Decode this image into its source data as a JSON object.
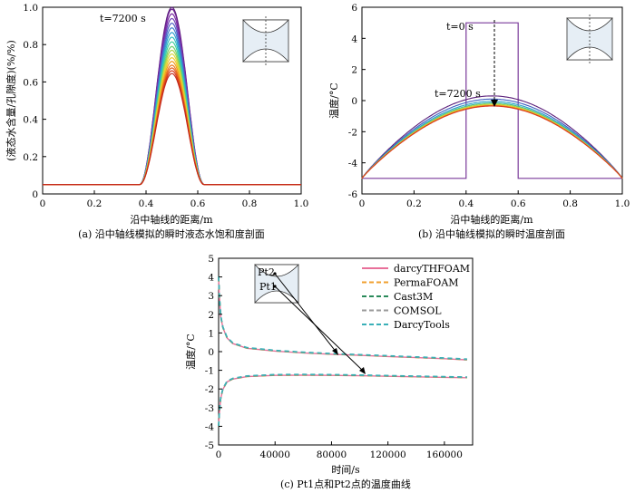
{
  "panel_a": {
    "caption": "(a) 沿中轴线模拟的瞬时液态水饱和度剖面",
    "annotation": "t=7200 s"
  },
  "panel_b": {
    "caption": "(b) 沿中轴线模拟的瞬时温度剖面",
    "annotation_start": "t=0 s",
    "annotation_end": "t=7200 s"
  },
  "panel_c": {
    "caption": "(c) Pt1点和Pt2点的温度曲线",
    "label_pt1": "Pt1",
    "label_pt2": "Pt2"
  },
  "chart_data": [
    {
      "id": "a",
      "type": "line",
      "title": "",
      "xlabel": "沿中轴线的距离/m",
      "ylabel": "(液态水含量/孔隙度)(%/%)",
      "xlim": [
        0,
        1.0
      ],
      "ylim": [
        0,
        1.0
      ],
      "xticks": [
        "0",
        "0.2",
        "0.4",
        "0.6",
        "0.8",
        "1.0"
      ],
      "yticks": [
        "0",
        "0.2",
        "0.4",
        "0.6",
        "0.8",
        "1.0"
      ],
      "baseline": 0.05,
      "profile_peaks": [
        1.0,
        0.99,
        0.965,
        0.94,
        0.915,
        0.89,
        0.865,
        0.84,
        0.815,
        0.79,
        0.77,
        0.75,
        0.73,
        0.71,
        0.69,
        0.675,
        0.66,
        0.645
      ],
      "profile_colors": [
        "#5b1f7a",
        "#6a1f8f",
        "#7a2aa3",
        "#6f3fb5",
        "#4f5fc4",
        "#3f7fcf",
        "#2fa0d0",
        "#2fbfc0",
        "#3fcfa0",
        "#6fd070",
        "#a8d44a",
        "#d8d83a",
        "#f0c82a",
        "#f2a020",
        "#ee7a1c",
        "#e45a1c",
        "#d83a1c",
        "#c42a1c"
      ],
      "x_start": 0.375,
      "x_end": 0.625,
      "grid": false
    },
    {
      "id": "b",
      "type": "line",
      "title": "",
      "xlabel": "沿中轴线的距离/m",
      "ylabel": "温度/°C",
      "xlim": [
        0,
        1.0
      ],
      "ylim": [
        -6,
        6
      ],
      "xticks": [
        "0",
        "0.2",
        "0.4",
        "0.6",
        "0.8",
        "1.0"
      ],
      "yticks": [
        "-6",
        "-4",
        "-2",
        "0",
        "2",
        "4",
        "6"
      ],
      "initial_profile": {
        "x": [
          0,
          0.4,
          0.4,
          0.6,
          0.6,
          1.0
        ],
        "y": [
          -5,
          -5,
          5,
          5,
          -5,
          -5
        ]
      },
      "profile_peaks": [
        0.3,
        0.1,
        -0.05,
        -0.15,
        -0.22,
        -0.28,
        -0.32,
        -0.35
      ],
      "profile_colors": [
        "#5b1f7a",
        "#3f5fc0",
        "#2fa0c8",
        "#3fbf9a",
        "#a8d44a",
        "#f0c82a",
        "#ee7a1c",
        "#d83a1c"
      ],
      "boundary_value": -5,
      "grid": false
    },
    {
      "id": "c",
      "type": "line",
      "title": "",
      "xlabel": "时间/s",
      "ylabel": "温度/°C",
      "xlim": [
        0,
        180000
      ],
      "ylim": [
        -5,
        5
      ],
      "xticks": [
        "0",
        "40000",
        "80000",
        "120000",
        "160000"
      ],
      "yticks": [
        "-5",
        "-4",
        "-3",
        "-2",
        "-1",
        "0",
        "1",
        "2",
        "3",
        "4",
        "5"
      ],
      "series": [
        {
          "name": "darcyTHFOAM",
          "color": "#e8709a",
          "dash": "solid"
        },
        {
          "name": "PermaFOAM",
          "color": "#f0a030",
          "dash": "dashed"
        },
        {
          "name": "Cast3M",
          "color": "#2a8a5a",
          "dash": "dashed"
        },
        {
          "name": "COMSOL",
          "color": "#9a9a9a",
          "dash": "dashed"
        },
        {
          "name": "DarcyTools",
          "color": "#3ab0b8",
          "dash": "dashed"
        }
      ],
      "pt1_curve": {
        "x": [
          0,
          500,
          1500,
          3000,
          6000,
          10000,
          20000,
          40000,
          60000,
          80000,
          100000,
          120000,
          140000,
          160000,
          176000
        ],
        "y": [
          4.0,
          3.0,
          1.9,
          1.3,
          0.75,
          0.45,
          0.2,
          0.05,
          -0.05,
          -0.12,
          -0.18,
          -0.24,
          -0.3,
          -0.36,
          -0.42
        ]
      },
      "pt2_curve": {
        "x": [
          0,
          500,
          1500,
          3000,
          6000,
          10000,
          20000,
          40000,
          60000,
          80000,
          100000,
          120000,
          140000,
          160000,
          176000
        ],
        "y": [
          -4.0,
          -3.3,
          -2.5,
          -2.0,
          -1.6,
          -1.45,
          -1.32,
          -1.25,
          -1.24,
          -1.25,
          -1.27,
          -1.3,
          -1.33,
          -1.36,
          -1.38
        ]
      },
      "legend": "top-right",
      "grid": false
    }
  ]
}
